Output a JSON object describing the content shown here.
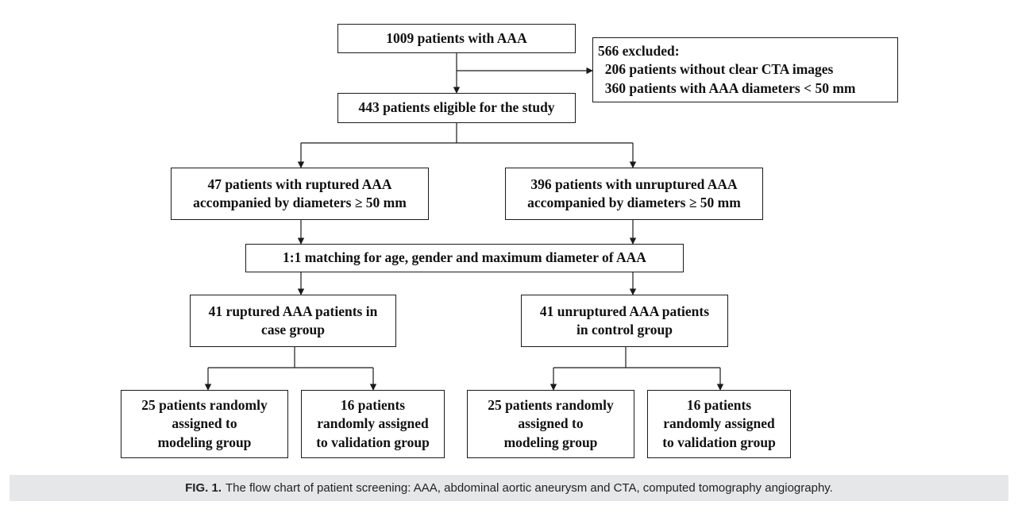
{
  "diagram": {
    "type": "flowchart",
    "nodes": {
      "total": [
        "1009 patients with AAA"
      ],
      "excluded": [
        "566 excluded:",
        "  206 patients without clear CTA images",
        "  360 patients with AAA diameters < 50 mm"
      ],
      "eligible": [
        "443 patients eligible for the study"
      ],
      "ruptured": [
        "47 patients with ruptured AAA",
        "accompanied by diameters ≥ 50 mm"
      ],
      "unruptured": [
        "396 patients with unruptured AAA",
        "accompanied by diameters ≥ 50 mm"
      ],
      "matching": [
        "1:1 matching for age, gender and maximum diameter of AAA"
      ],
      "case_group": [
        "41 ruptured AAA patients in",
        "case group"
      ],
      "control_group": [
        "41 unruptured AAA patients",
        "in control group"
      ],
      "case_modeling": [
        "25 patients randomly",
        "assigned to",
        "modeling group"
      ],
      "case_validation": [
        "16 patients",
        "randomly assigned",
        "to validation group"
      ],
      "control_modeling": [
        "25 patients randomly",
        "assigned to",
        "modeling group"
      ],
      "control_validation": [
        "16 patients",
        "randomly assigned",
        "to validation group"
      ]
    },
    "edges": [
      [
        "total",
        "eligible"
      ],
      [
        "total",
        "excluded"
      ],
      [
        "eligible",
        "ruptured"
      ],
      [
        "eligible",
        "unruptured"
      ],
      [
        "ruptured",
        "matching"
      ],
      [
        "unruptured",
        "matching"
      ],
      [
        "matching",
        "case_group"
      ],
      [
        "matching",
        "control_group"
      ],
      [
        "case_group",
        "case_modeling"
      ],
      [
        "case_group",
        "case_validation"
      ],
      [
        "control_group",
        "control_modeling"
      ],
      [
        "control_group",
        "control_validation"
      ]
    ]
  },
  "caption": {
    "label": "FIG. 1.",
    "text": "The flow chart of patient screening: AAA, abdominal aortic aneurysm and CTA, computed tomography angiography."
  }
}
